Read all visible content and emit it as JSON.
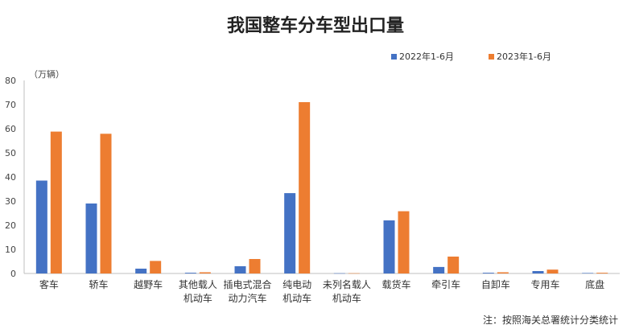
{
  "title": "我国整车分车型出口量",
  "note": "注：按照海关总署统计分类统计",
  "chart_data": {
    "type": "bar",
    "title": "我国整车分车型出口量",
    "unit_label": "（万辆）",
    "ylim": [
      0,
      80
    ],
    "yticks": [
      0,
      10,
      20,
      30,
      40,
      50,
      60,
      70,
      80
    ],
    "grid": false,
    "legend_position": "top-right",
    "categories": [
      [
        "客车"
      ],
      [
        "轿车"
      ],
      [
        "越野车"
      ],
      [
        "其他载人",
        "机动车"
      ],
      [
        "插电式混合",
        "动力汽车"
      ],
      [
        "纯电动",
        "机动车"
      ],
      [
        "未列名载人",
        "机动车"
      ],
      [
        "载货车"
      ],
      [
        "牵引车"
      ],
      [
        "自卸车"
      ],
      [
        "专用车"
      ],
      [
        "底盘"
      ]
    ],
    "series": [
      {
        "name": "2022年1-6月",
        "color": "#4472C4",
        "values": [
          38.5,
          29,
          2,
          0.3,
          3,
          33.3,
          0.1,
          22,
          2.7,
          0.3,
          1,
          0.2
        ]
      },
      {
        "name": "2023年1-6月",
        "color": "#ED7D31",
        "values": [
          58.8,
          57.9,
          5.2,
          0.5,
          6,
          71,
          0.1,
          25.8,
          7,
          0.5,
          1.6,
          0.3
        ]
      }
    ]
  }
}
